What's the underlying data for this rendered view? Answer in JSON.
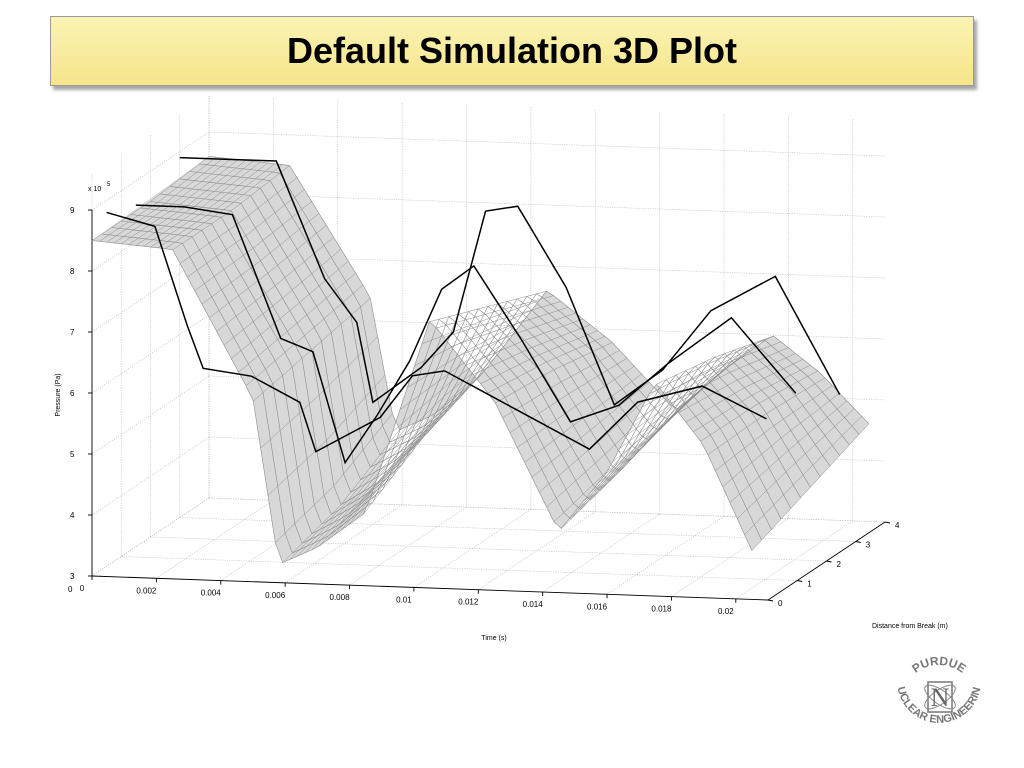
{
  "slide": {
    "title": "Default Simulation 3D Plot"
  },
  "chart_data": {
    "type": "surface-3d",
    "title": "",
    "xlabel": "Time (s)",
    "ylabel": "Distance from Break (m)",
    "zlabel": "Pressure (Pa)",
    "z_multiplier": "x 10",
    "z_exponent": "5",
    "x_ticks": [
      "0",
      "0.002",
      "0.004",
      "0.006",
      "0.008",
      "0.01",
      "0.012",
      "0.014",
      "0.016",
      "0.018",
      "0.02"
    ],
    "y_ticks": [
      "0",
      "1",
      "2",
      "3",
      "4"
    ],
    "z_ticks": [
      "3",
      "4",
      "5",
      "6",
      "7",
      "8",
      "9"
    ],
    "xlim": [
      0,
      0.021
    ],
    "ylim": [
      0,
      4
    ],
    "zlim": [
      3,
      9
    ],
    "grid": true,
    "surface_color": "#8c8c8c",
    "line_color": "#000000",
    "surface_rows": [
      {
        "distance": 0,
        "time": [
          0,
          0.0025,
          0.005,
          0.0058,
          0.007,
          0.0085,
          0.0105,
          0.0125,
          0.0145,
          0.016,
          0.0175,
          0.019,
          0.0205
        ],
        "pressure": [
          8.5,
          8.4,
          6.0,
          3.3,
          3.6,
          4.2,
          7.4,
          6.1,
          4.0,
          5.0,
          6.5,
          5.5,
          3.8
        ]
      },
      {
        "distance": 2,
        "time": [
          0,
          0.0025,
          0.005,
          0.0058,
          0.007,
          0.0085,
          0.0105,
          0.0125,
          0.0145,
          0.016,
          0.0175,
          0.019,
          0.0205
        ],
        "pressure": [
          8.5,
          8.4,
          6.2,
          3.6,
          4.0,
          4.8,
          7.0,
          6.0,
          4.3,
          5.2,
          6.3,
          5.5,
          4.2
        ]
      },
      {
        "distance": 4,
        "time": [
          0,
          0.0025,
          0.005,
          0.0058,
          0.007,
          0.0085,
          0.0105,
          0.0125,
          0.0145,
          0.016,
          0.0175,
          0.019,
          0.0205
        ],
        "pressure": [
          8.6,
          8.5,
          6.4,
          4.2,
          4.5,
          5.2,
          6.6,
          5.8,
          4.7,
          5.4,
          6.0,
          5.4,
          4.6
        ]
      }
    ],
    "measured_lines": [
      {
        "distance": 0.5,
        "time": [
          0,
          0.0015,
          0.0025,
          0.003,
          0.0045,
          0.006,
          0.0065,
          0.0075,
          0.0085,
          0.0095,
          0.0105,
          0.012,
          0.0135,
          0.015,
          0.0165,
          0.0185,
          0.0205
        ],
        "pressure": [
          8.8,
          8.6,
          7.0,
          6.3,
          6.2,
          5.8,
          5.0,
          5.3,
          5.6,
          6.3,
          6.4,
          6.0,
          5.6,
          5.2,
          6.0,
          6.3,
          5.8
        ]
      },
      {
        "distance": 1.5,
        "time": [
          0,
          0.0015,
          0.003,
          0.0045,
          0.0055,
          0.0065,
          0.0075,
          0.0085,
          0.0095,
          0.0105,
          0.012,
          0.0135,
          0.015,
          0.0165,
          0.0185,
          0.0205
        ],
        "pressure": [
          8.6,
          8.6,
          8.5,
          6.5,
          6.3,
          4.5,
          5.3,
          6.2,
          7.4,
          7.8,
          6.6,
          5.3,
          5.6,
          6.3,
          7.1,
          5.9
        ]
      },
      {
        "distance": 3.0,
        "time": [
          0,
          0.0015,
          0.003,
          0.0045,
          0.0055,
          0.006,
          0.0075,
          0.0085,
          0.0095,
          0.0105,
          0.012,
          0.0135,
          0.015,
          0.0165,
          0.0185,
          0.0205
        ],
        "pressure": [
          8.9,
          8.9,
          8.9,
          7.0,
          6.3,
          5.0,
          5.6,
          6.2,
          8.2,
          8.3,
          7.0,
          5.1,
          5.7,
          6.7,
          7.3,
          5.4
        ]
      }
    ]
  },
  "logo": {
    "text_top": "PURDUE",
    "text_bottom": "NUCLEAR ENGINEERING",
    "letter": "N"
  }
}
